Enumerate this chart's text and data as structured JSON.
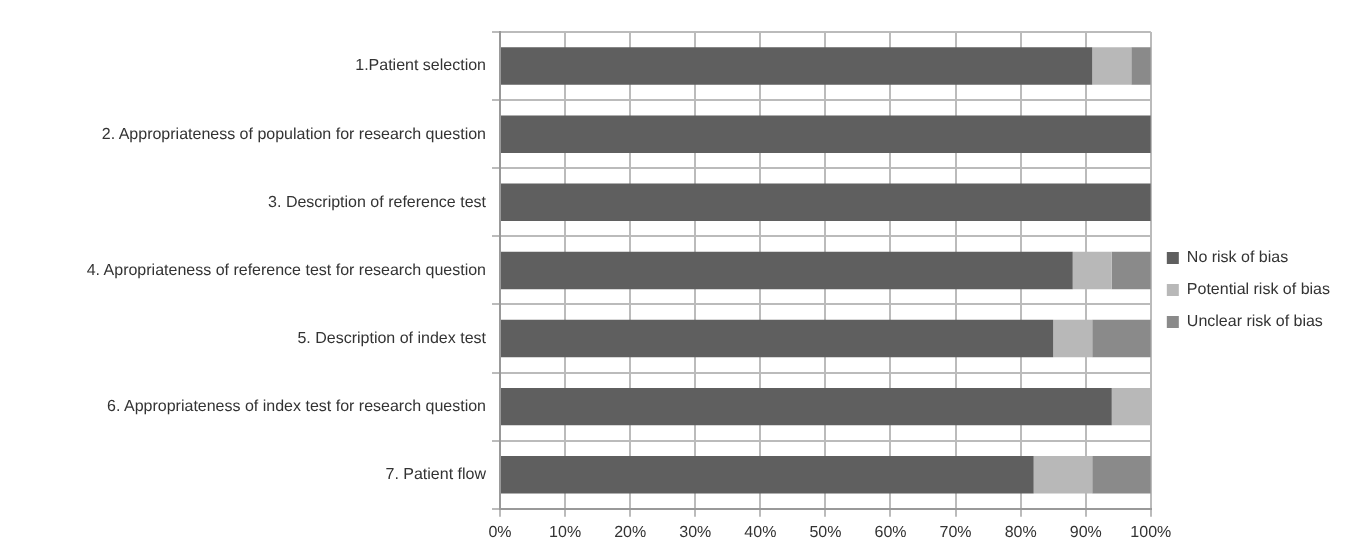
{
  "chart_data": {
    "type": "bar",
    "orientation": "horizontal",
    "stacked": true,
    "categories": [
      "1.Patient selection",
      "2. Appropriateness of population for research question",
      "3. Description of reference test",
      "4. Apropriateness of reference test for research question",
      "5. Description of index test",
      "6. Appropriateness of index test for research question",
      "7. Patient flow"
    ],
    "series": [
      {
        "name": "No risk of bias",
        "color": "#5f5f5f",
        "values": [
          91,
          100,
          100,
          88,
          85,
          94,
          82
        ]
      },
      {
        "name": "Potential risk of bias",
        "color": "#b8b8b8",
        "values": [
          6,
          0,
          0,
          6,
          6,
          6,
          9
        ]
      },
      {
        "name": "Unclear risk of bias",
        "color": "#8a8a8a",
        "values": [
          3,
          0,
          0,
          6,
          9,
          0,
          9
        ]
      }
    ],
    "xlim": [
      0,
      100
    ],
    "xticks": [
      {
        "value": 0,
        "label": "0%"
      },
      {
        "value": 10,
        "label": "10%"
      },
      {
        "value": 20,
        "label": "20%"
      },
      {
        "value": 30,
        "label": "30%"
      },
      {
        "value": 40,
        "label": "40%"
      },
      {
        "value": 50,
        "label": "50%"
      },
      {
        "value": 60,
        "label": "60%"
      },
      {
        "value": 70,
        "label": "70%"
      },
      {
        "value": 80,
        "label": "80%"
      },
      {
        "value": 90,
        "label": "90%"
      },
      {
        "value": 100,
        "label": "100%"
      }
    ],
    "grid": true,
    "legend": "right"
  }
}
